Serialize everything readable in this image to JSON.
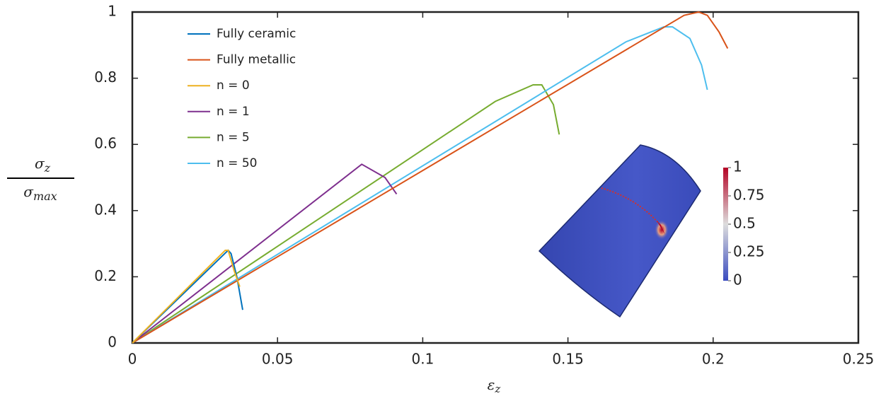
{
  "chart_data": {
    "type": "line",
    "ylabel": {
      "symbol": "σ",
      "top_sub": "z",
      "bottom_sub": "max"
    },
    "xlabel": {
      "symbol": "ε",
      "sub": "z"
    },
    "xlim": [
      0,
      0.25
    ],
    "xticks": [
      0,
      0.05,
      0.1,
      0.15,
      0.2,
      0.25
    ],
    "ylim": [
      0,
      1
    ],
    "yticks": [
      0,
      0.2,
      0.4,
      0.6,
      0.8,
      1
    ],
    "grid": false,
    "legend": "upper-left",
    "series": [
      {
        "name": "Fully ceramic",
        "color": "#0072bd",
        "x": [
          0,
          0.033,
          0.034,
          0.036,
          0.038
        ],
        "values": [
          0,
          0.28,
          0.27,
          0.2,
          0.1
        ]
      },
      {
        "name": "Fully metallic",
        "color": "#d95319",
        "x": [
          0,
          0.19,
          0.195,
          0.198,
          0.202,
          0.205
        ],
        "values": [
          0,
          0.99,
          1.0,
          0.99,
          0.94,
          0.89
        ]
      },
      {
        "name": "n = 0",
        "color": "#edb120",
        "x": [
          0,
          0.032,
          0.033,
          0.035,
          0.037
        ],
        "values": [
          0,
          0.28,
          0.28,
          0.22,
          0.17
        ]
      },
      {
        "name": "n = 1",
        "color": "#7e2f8e",
        "x": [
          0,
          0.079,
          0.087,
          0.091
        ],
        "values": [
          0,
          0.54,
          0.5,
          0.45
        ]
      },
      {
        "name": "n = 5",
        "color": "#77ac30",
        "x": [
          0,
          0.125,
          0.138,
          0.141,
          0.145,
          0.147
        ],
        "values": [
          0,
          0.73,
          0.78,
          0.78,
          0.72,
          0.63
        ]
      },
      {
        "name": "n = 50",
        "color": "#4dbeee",
        "x": [
          0,
          0.17,
          0.183,
          0.186,
          0.192,
          0.196,
          0.198
        ],
        "values": [
          0,
          0.91,
          0.955,
          0.955,
          0.92,
          0.84,
          0.765
        ]
      }
    ],
    "inset": {
      "colorbar_ticks": [
        0,
        0.25,
        0.5,
        0.75,
        1
      ]
    }
  }
}
